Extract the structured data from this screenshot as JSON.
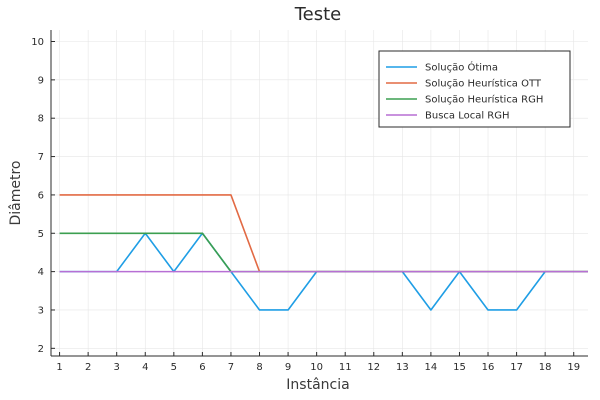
{
  "chart_data": {
    "type": "line",
    "title": "Teste",
    "xlabel": "Instância",
    "ylabel": "Diâmetro",
    "xlim": [
      0.7,
      19.5
    ],
    "ylim": [
      1.8,
      10.3
    ],
    "xticks": [
      1,
      2,
      3,
      4,
      5,
      6,
      7,
      8,
      9,
      10,
      11,
      12,
      13,
      14,
      15,
      16,
      17,
      18,
      19
    ],
    "yticks": [
      2,
      3,
      4,
      5,
      6,
      7,
      8,
      9,
      10
    ],
    "grid": true,
    "legend_position": "top-right",
    "x": [
      1,
      2,
      3,
      4,
      5,
      6,
      7,
      8,
      9,
      10,
      11,
      12,
      13,
      14,
      15,
      16,
      17,
      18,
      19,
      19.5
    ],
    "series": [
      {
        "name": "Solução Ótima",
        "color": "#1f9ee5",
        "values": [
          4,
          4,
          4,
          5,
          4,
          5,
          4,
          3,
          3,
          4,
          4,
          4,
          4,
          3,
          4,
          3,
          3,
          4,
          4,
          4
        ]
      },
      {
        "name": "Solução Heurística OTT",
        "color": "#e26a44",
        "values": [
          6,
          6,
          6,
          6,
          6,
          6,
          6,
          4,
          4,
          4,
          4,
          4,
          4,
          4,
          4,
          4,
          4,
          4,
          4,
          4
        ]
      },
      {
        "name": "Solução Heurística RGH",
        "color": "#3c9f50",
        "values": [
          5,
          5,
          5,
          5,
          5,
          5,
          4,
          4,
          4,
          4,
          4,
          4,
          4,
          4,
          4,
          4,
          4,
          4,
          4,
          4
        ]
      },
      {
        "name": "Busca Local RGH",
        "color": "#b76fd4",
        "values": [
          4,
          4,
          4,
          4,
          4,
          4,
          4,
          4,
          4,
          4,
          4,
          4,
          4,
          4,
          4,
          4,
          4,
          4,
          4,
          4
        ]
      }
    ]
  }
}
